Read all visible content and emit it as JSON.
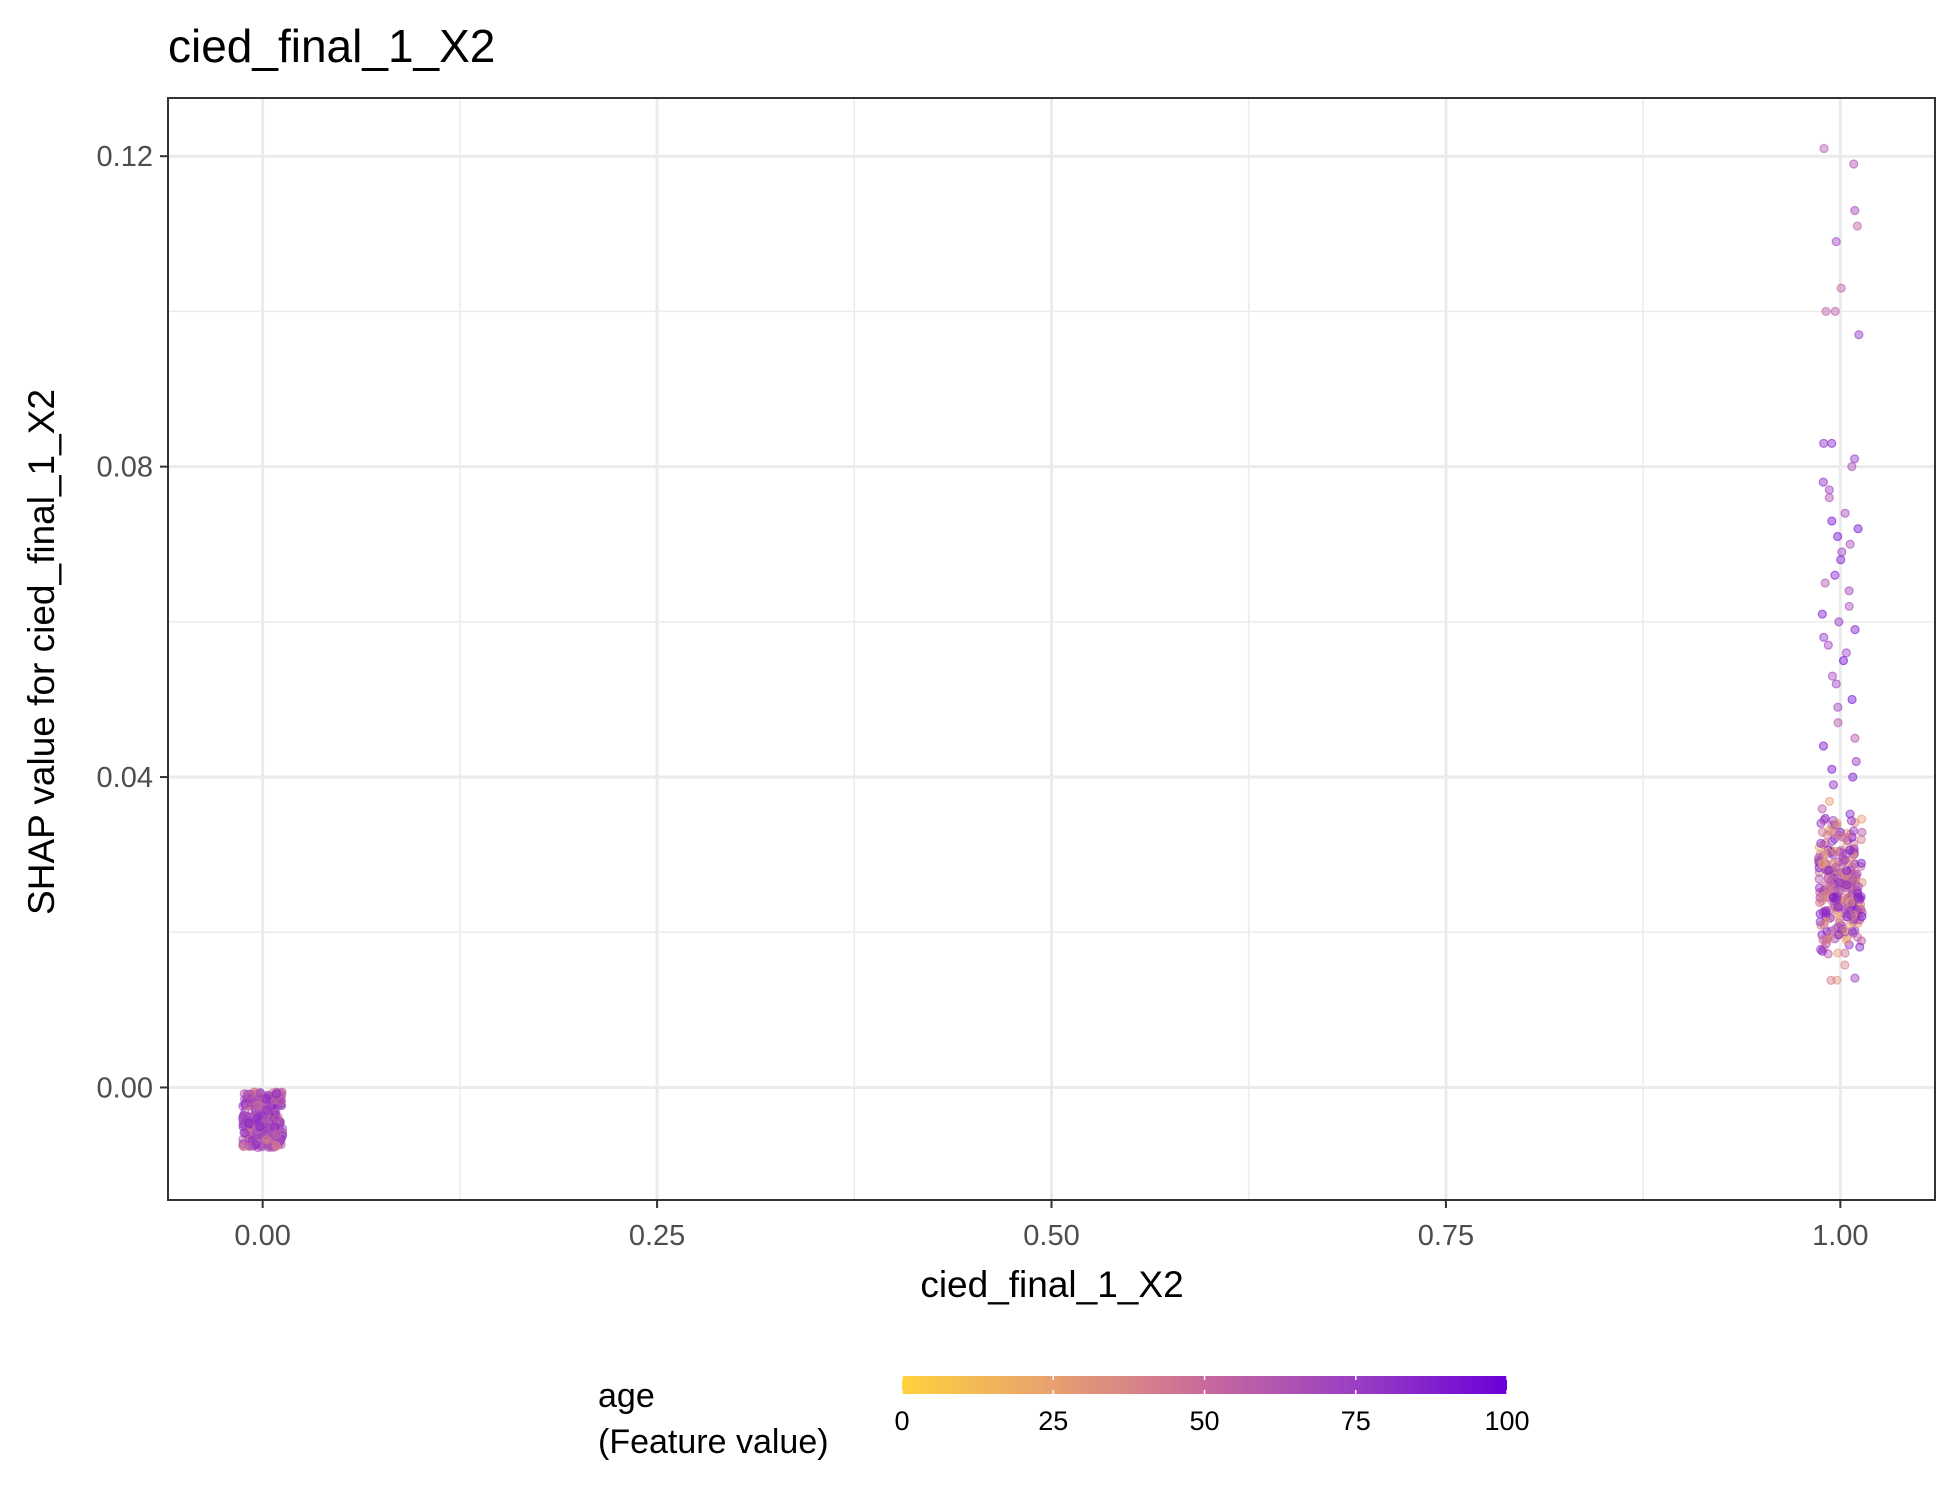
{
  "chart_data": {
    "type": "scatter",
    "title": "cied_final_1_X2",
    "xlabel": "cied_final_1_X2",
    "ylabel": "SHAP value for cied_final_1_X2",
    "xlim": [
      -0.06,
      1.06
    ],
    "ylim": [
      -0.0145,
      0.1275
    ],
    "x_ticks": [
      0.0,
      0.25,
      0.5,
      0.75,
      1.0
    ],
    "x_tick_labels": [
      "0.00",
      "0.25",
      "0.50",
      "0.75",
      "1.00"
    ],
    "y_ticks": [
      0.0,
      0.04,
      0.08,
      0.12
    ],
    "y_tick_labels": [
      "0.00",
      "0.04",
      "0.08",
      "0.12"
    ],
    "grid": true,
    "legend": {
      "title_line1": "age",
      "title_line2": "(Feature value)",
      "position": "bottom",
      "range": [
        0,
        100
      ],
      "ticks": [
        0,
        25,
        50,
        75,
        100
      ],
      "tick_labels": [
        "0",
        "25",
        "50",
        "75",
        "100"
      ],
      "colors": [
        "#FFD23C",
        "#E8A070",
        "#C86A9C",
        "#9A3FC4",
        "#6A00D8"
      ]
    },
    "groups": [
      {
        "x": 0.0,
        "count": 260,
        "y_levels": [
          -0.0008,
          -0.0015,
          -0.0022,
          -0.003,
          -0.0038,
          -0.0045,
          -0.0052,
          -0.006,
          -0.0067,
          -0.0075
        ],
        "y_range": [
          -0.0076,
          -0.0006
        ],
        "typical_age": [
          40,
          90
        ]
      },
      {
        "x": 1.0,
        "count": 330,
        "points_y": [
          0.121,
          0.119,
          0.113,
          0.111,
          0.109,
          0.103,
          0.1,
          0.1,
          0.097,
          0.083,
          0.083,
          0.081,
          0.08,
          0.078,
          0.077,
          0.076,
          0.074,
          0.073,
          0.072,
          0.071,
          0.07,
          0.069,
          0.068,
          0.066,
          0.065,
          0.064,
          0.062,
          0.061,
          0.06,
          0.059,
          0.058,
          0.057,
          0.056,
          0.055,
          0.053,
          0.052,
          0.05,
          0.049,
          0.047,
          0.045,
          0.044,
          0.042,
          0.041,
          0.04,
          0.039
        ],
        "dense_range": [
          0.012,
          0.039
        ],
        "dense_count": 285,
        "typical_age": [
          20,
          95
        ]
      }
    ]
  }
}
